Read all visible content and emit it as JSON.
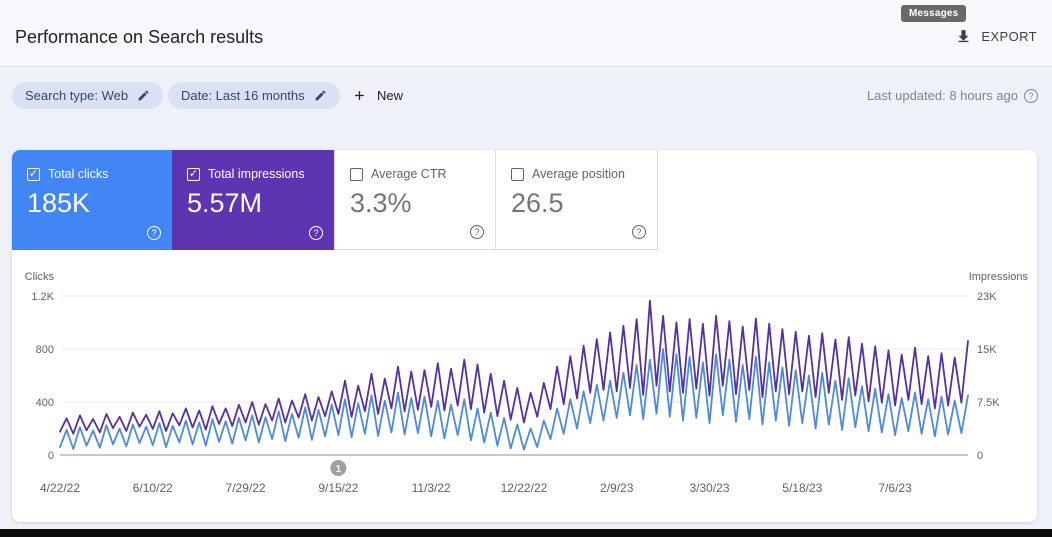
{
  "header": {
    "title": "Performance on Search results",
    "messages_tooltip": "Messages",
    "export_label": "EXPORT"
  },
  "filters": {
    "chips": [
      {
        "label": "Search type: Web"
      },
      {
        "label": "Date: Last 16 months"
      }
    ],
    "new_label": "New",
    "last_updated": "Last updated: 8 hours ago"
  },
  "metrics": [
    {
      "label": "Total clicks",
      "value": "185K",
      "checked": true,
      "color": "#4285f4"
    },
    {
      "label": "Total impressions",
      "value": "5.57M",
      "checked": true,
      "color": "#5e35b1"
    },
    {
      "label": "Average CTR",
      "value": "3.3%",
      "checked": false,
      "color": "#ffffff"
    },
    {
      "label": "Average position",
      "value": "26.5",
      "checked": false,
      "color": "#ffffff"
    }
  ],
  "chart_data": {
    "type": "line",
    "grid": true,
    "left_axis": {
      "title": "Clicks",
      "ticks": [
        0,
        400,
        800,
        1200
      ],
      "tick_labels": [
        "0",
        "400",
        "800",
        "1.2K"
      ]
    },
    "right_axis": {
      "title": "Impressions",
      "ticks": [
        0,
        7500,
        15000,
        23000
      ],
      "tick_labels": [
        "0",
        "7.5K",
        "15K",
        "23K"
      ]
    },
    "x_labels": [
      "4/22/22",
      "6/10/22",
      "7/29/22",
      "9/15/22",
      "11/3/22",
      "12/22/22",
      "2/9/23",
      "3/30/23",
      "5/18/23",
      "7/6/23"
    ],
    "x_label_step": 14,
    "annotation": {
      "label": "1",
      "x_label_index": 3
    },
    "series": [
      {
        "name": "Clicks",
        "axis": "left",
        "color": "#4d8bd8",
        "values": [
          60,
          190,
          45,
          210,
          70,
          185,
          55,
          225,
          80,
          200,
          65,
          230,
          90,
          215,
          75,
          240,
          60,
          220,
          95,
          260,
          80,
          245,
          70,
          270,
          100,
          255,
          85,
          280,
          110,
          300,
          95,
          285,
          120,
          330,
          105,
          310,
          130,
          360,
          115,
          340,
          140,
          380,
          150,
          420,
          135,
          390,
          160,
          450,
          145,
          410,
          170,
          470,
          155,
          430,
          165,
          440,
          140,
          410,
          125,
          380,
          150,
          420,
          110,
          350,
          95,
          320,
          70,
          280,
          50,
          230,
          40,
          200,
          60,
          260,
          120,
          350,
          160,
          420,
          200,
          480,
          240,
          530,
          260,
          560,
          280,
          620,
          300,
          680,
          270,
          720,
          310,
          800,
          290,
          760,
          260,
          740,
          280,
          700,
          240,
          760,
          300,
          720,
          250,
          680,
          270,
          740,
          230,
          700,
          260,
          660,
          220,
          640,
          240,
          600,
          200,
          620,
          230,
          560,
          190,
          580,
          210,
          520,
          180,
          500,
          170,
          460,
          150,
          430,
          180,
          470,
          160,
          420,
          140,
          440,
          155,
          410,
          165,
          450
        ]
      },
      {
        "name": "Impressions",
        "axis": "right",
        "color": "#56319e",
        "values": [
          3300,
          5200,
          3000,
          5600,
          3500,
          5100,
          3200,
          5800,
          3800,
          5400,
          3400,
          6000,
          4000,
          5700,
          3700,
          6200,
          3400,
          5900,
          4200,
          6600,
          3900,
          6300,
          3600,
          6900,
          4400,
          6600,
          4100,
          7100,
          4600,
          7500,
          4300,
          7200,
          4900,
          8000,
          4600,
          7700,
          5300,
          8600,
          4900,
          8200,
          5500,
          9000,
          5800,
          10500,
          5400,
          9800,
          6200,
          11500,
          5800,
          10800,
          6600,
          12500,
          6200,
          11800,
          6400,
          12000,
          6800,
          13000,
          6300,
          12200,
          7000,
          13500,
          6500,
          12800,
          6000,
          11500,
          5500,
          10500,
          5000,
          9500,
          4600,
          8800,
          5400,
          10200,
          6500,
          12500,
          7200,
          14000,
          8000,
          15500,
          8800,
          16500,
          9200,
          17500,
          9000,
          18500,
          9500,
          19500,
          8500,
          22300,
          9800,
          20000,
          9000,
          19000,
          8800,
          19500,
          9400,
          18800,
          8400,
          20000,
          9800,
          19200,
          8600,
          18400,
          9200,
          19600,
          8200,
          18800,
          9000,
          18000,
          8600,
          17600,
          9000,
          17000,
          8200,
          17400,
          8800,
          16400,
          7800,
          16800,
          8400,
          15800,
          7600,
          15400,
          7400,
          14800,
          7000,
          14200,
          7800,
          15200,
          7200,
          14000,
          6600,
          14400,
          7000,
          13800,
          7400,
          16200
        ]
      }
    ],
    "colors": {
      "axis_text": "#5f6368",
      "gridline": "#e9ebee",
      "baseline": "#8f959b",
      "annotation_badge": "#9aa0a6"
    }
  }
}
